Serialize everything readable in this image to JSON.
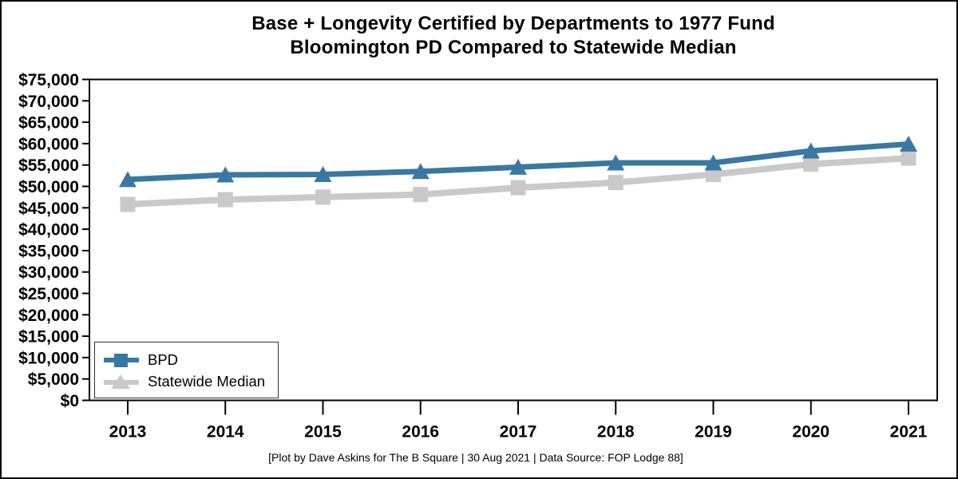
{
  "title": {
    "line1": "Base + Longevity Certified by Departments to 1977 Fund",
    "line2": "Bloomington PD Compared to Statewide Median"
  },
  "caption": "[Plot by Dave Askins for The B Square | 30 Aug 2021 | Data Source: FOP Lodge 88]",
  "colors": {
    "bpd": "#3a78a4",
    "statewide": "#c9c9c9",
    "axis": "#000000",
    "background": "#ffffff"
  },
  "legend": {
    "items": [
      {
        "label": "BPD",
        "marker": "square",
        "color": "#3a78a4"
      },
      {
        "label": "Statewide Median",
        "marker": "triangle",
        "color": "#c9c9c9"
      }
    ]
  },
  "chart_data": {
    "type": "line",
    "title": "Base + Longevity Certified by Departments to 1977 Fund — Bloomington PD Compared to Statewide Median",
    "x": [
      2013,
      2014,
      2015,
      2016,
      2017,
      2018,
      2019,
      2020,
      2021
    ],
    "xtick_labels": [
      "2013",
      "2014",
      "2015",
      "2016",
      "2017",
      "2018",
      "2019",
      "2020",
      "2021"
    ],
    "series": [
      {
        "name": "BPD",
        "color": "#3a78a4",
        "marker_on_chart": "triangle",
        "values": [
          51600,
          52700,
          52800,
          53500,
          54500,
          55500,
          55500,
          58300,
          59900
        ]
      },
      {
        "name": "Statewide Median",
        "color": "#c9c9c9",
        "marker_on_chart": "square",
        "values": [
          45800,
          46900,
          47500,
          48100,
          49700,
          50900,
          52800,
          55200,
          56600
        ]
      }
    ],
    "ylim": [
      0,
      75000
    ],
    "ytick_step": 5000,
    "ytick_labels": [
      "$0",
      "$5,000",
      "$10,000",
      "$15,000",
      "$20,000",
      "$25,000",
      "$30,000",
      "$35,000",
      "$40,000",
      "$45,000",
      "$50,000",
      "$55,000",
      "$60,000",
      "$65,000",
      "$70,000",
      "$75,000"
    ],
    "grid": false,
    "legend_position": "lower left"
  }
}
